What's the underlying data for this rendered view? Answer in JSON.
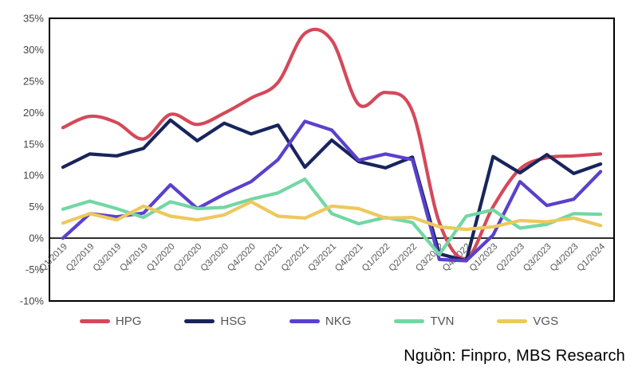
{
  "chart_data": {
    "type": "line",
    "title": "",
    "categories": [
      "Q1/2019",
      "Q2/2019",
      "Q3/2019",
      "Q4/2019",
      "Q1/2020",
      "Q2/2020",
      "Q3/2020",
      "Q4/2020",
      "Q1/2021",
      "Q2/2021",
      "Q3/2021",
      "Q4/2021",
      "Q1/2022",
      "Q2/2022",
      "Q3/2022",
      "Q4/2022",
      "Q1/2023",
      "Q2/2023",
      "Q3/2023",
      "Q4/2023",
      "Q1/2024"
    ],
    "series": [
      {
        "name": "HPG",
        "color": "#d4495a",
        "smooth": true,
        "values": [
          17.6,
          19.4,
          18.4,
          15.8,
          19.7,
          18.1,
          19.9,
          22.3,
          24.8,
          32.6,
          31.5,
          21.3,
          23.2,
          20.2,
          2.5,
          -3.2,
          5.0,
          11.0,
          12.8,
          13.1,
          13.4
        ]
      },
      {
        "name": "HSG",
        "color": "#18255c",
        "smooth": false,
        "values": [
          11.3,
          13.4,
          13.1,
          14.3,
          18.8,
          15.5,
          18.3,
          16.6,
          18.0,
          11.3,
          15.6,
          12.2,
          11.2,
          12.9,
          -2.5,
          -3.6,
          13.0,
          10.4,
          13.3,
          10.3,
          11.8
        ]
      },
      {
        "name": "NKG",
        "color": "#5a41cc",
        "smooth": false,
        "values": [
          0.0,
          3.9,
          3.4,
          4.0,
          8.5,
          4.7,
          7.0,
          9.0,
          12.5,
          18.6,
          17.2,
          12.4,
          13.4,
          12.5,
          -3.4,
          -3.6,
          0.5,
          9.0,
          5.2,
          6.2,
          10.6
        ]
      },
      {
        "name": "TVN",
        "color": "#72d7a4",
        "smooth": false,
        "values": [
          4.6,
          5.9,
          4.7,
          3.3,
          5.8,
          4.7,
          4.9,
          6.2,
          7.2,
          9.4,
          3.9,
          2.3,
          3.3,
          2.5,
          -2.6,
          3.5,
          4.5,
          1.6,
          2.2,
          3.9,
          3.8
        ]
      },
      {
        "name": "VGS",
        "color": "#eec85e",
        "smooth": false,
        "values": [
          2.4,
          3.9,
          2.9,
          5.1,
          3.5,
          2.9,
          3.7,
          5.8,
          3.5,
          3.2,
          5.1,
          4.7,
          3.2,
          3.3,
          1.8,
          1.4,
          1.8,
          2.8,
          2.6,
          3.2,
          2.0
        ]
      }
    ],
    "xlabel": "",
    "ylabel": "",
    "ylim": [
      -10,
      35
    ],
    "ytick_step": 5,
    "ytick_suffix": "%",
    "grid": false,
    "legend_position": "bottom",
    "zero_axis_line": true
  },
  "legend": {
    "items": [
      "HPG",
      "HSG",
      "NKG",
      "TVN",
      "VGS"
    ]
  },
  "source_note": "Nguồn: Finpro, MBS Research",
  "style": {
    "background": "#ffffff",
    "border_color": "#000000",
    "tick_text_color": "#595959",
    "ytick_text_color": "#444444",
    "legend_text_color": "#555555",
    "line_width": 4.2
  }
}
